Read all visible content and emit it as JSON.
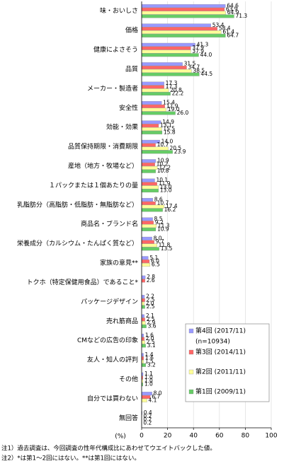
{
  "chart_data": {
    "type": "bar",
    "orientation": "horizontal",
    "categories": [
      "味・おいしさ",
      "価格",
      "健康によさそう",
      "品質",
      "メーカー・製造者",
      "安全性",
      "効能・効果",
      "品質保持期限・消費期限",
      "産地（地方・牧場など）",
      "１パックまたは１個あたりの量",
      "乳脂肪分（高脂肪・低脂肪・無脂肪など）",
      "商品名・ブランド名",
      "栄養成分（カルシウム・たんぱく質など）",
      "家族の意見**",
      "トクホ（特定保健用食品）であること*",
      "パッケージデザイン",
      "売れ筋商品",
      "CMなどの広告の印象",
      "友人・知人の評判",
      "その他",
      "自分では買わない",
      "無回答"
    ],
    "series": [
      {
        "name": "第4回 (2017/11)",
        "color": "#9999ff",
        "values": [
          64.6,
          53.4,
          41.3,
          31.5,
          17.3,
          15.4,
          14.9,
          14.0,
          10.9,
          10.1,
          8.6,
          8.5,
          8.0,
          5.1,
          2.8,
          2.2,
          2.1,
          1.6,
          1.4,
          1.1,
          8.0,
          0.4
        ],
        "value_labels": [
          "64.6",
          "53.4",
          "41.3",
          "31.5",
          "17.3",
          "15.4",
          "14.9",
          "14.0",
          "10.9",
          "10.1",
          "8.6",
          "8.5",
          "8.0",
          "5.1",
          "2.8",
          "2.2",
          "2.1",
          "1.6",
          "1.4",
          "1.1",
          "8.0",
          "0.4"
        ]
      },
      {
        "name": "第3回 (2014/11)",
        "color": "#ff6666",
        "values": [
          63.9,
          58.4,
          37.9,
          34.7,
          17.3,
          17.9,
          13.1,
          10.7,
          10.2,
          11.9,
          10.7,
          9.2,
          9.7,
          6.0,
          2.6,
          2.5,
          2.5,
          2.0,
          1.6,
          1.0,
          6.7,
          0.2
        ],
        "value_labels": [
          "63.9",
          "58.4",
          "37.9",
          "34.7",
          "17.3",
          "17.9",
          "13.1",
          "10.7",
          "10.2",
          "11.9",
          "10.7",
          "9.2",
          "9.7",
          "6.0",
          "2.6",
          "2.5",
          "2.5",
          "2.0",
          "1.6",
          "1.0",
          "6.7",
          "0.2"
        ]
      },
      {
        "name": "第2回 (2011/11)",
        "color": "#ffff99",
        "values": [
          64.9,
          61.4,
          37.9,
          38.5,
          20.8,
          19.0,
          15.5,
          20.5,
          12.2,
          13.0,
          17.4,
          11.3,
          11.8,
          6.5,
          null,
          2.0,
          2.9,
          2.5,
          1.5,
          1.0,
          4.1,
          0.2
        ],
        "value_labels": [
          "64.9",
          "61.4",
          "37.9",
          "38.5",
          "20.8",
          "19.0",
          "15.5",
          "20.5",
          "12.2",
          "13.0",
          "17.4",
          "11.3",
          "11.8",
          "6.5",
          null,
          "2.0",
          "2.9",
          "2.5",
          "1.5",
          "1.0",
          "4.1",
          "0.2"
        ]
      },
      {
        "name": "第1回 (2009/11)",
        "color": "#66cc66",
        "values": [
          71.3,
          64.7,
          44.0,
          44.5,
          22.2,
          26.0,
          15.8,
          23.9,
          10.8,
          13.0,
          16.2,
          10.9,
          13.5,
          null,
          null,
          2.5,
          3.6,
          3.1,
          3.2,
          1.0,
          null,
          0.2
        ],
        "value_labels": [
          "71.3",
          "64.7",
          "44.0",
          "44.5",
          "22.2",
          "26.0",
          "15.8",
          "23.9",
          "10.8",
          "13.0",
          "16.2",
          "10.9",
          "13.5",
          null,
          null,
          "2.5",
          "3.6",
          "3.1",
          "3.2",
          "1.0",
          null,
          "0.2"
        ]
      }
    ],
    "legend_note": "(n=10934)",
    "xlim": [
      0,
      100
    ],
    "xticks": [
      0,
      20,
      40,
      60,
      80,
      100
    ],
    "x_label": "(%)",
    "grid": true,
    "notes": [
      "注1）過去調査は、今回調査の性年代構成比にあわせてウエイトバックした値。",
      "注2）*は第1～2回にはない。**は第1回にはない。"
    ]
  }
}
